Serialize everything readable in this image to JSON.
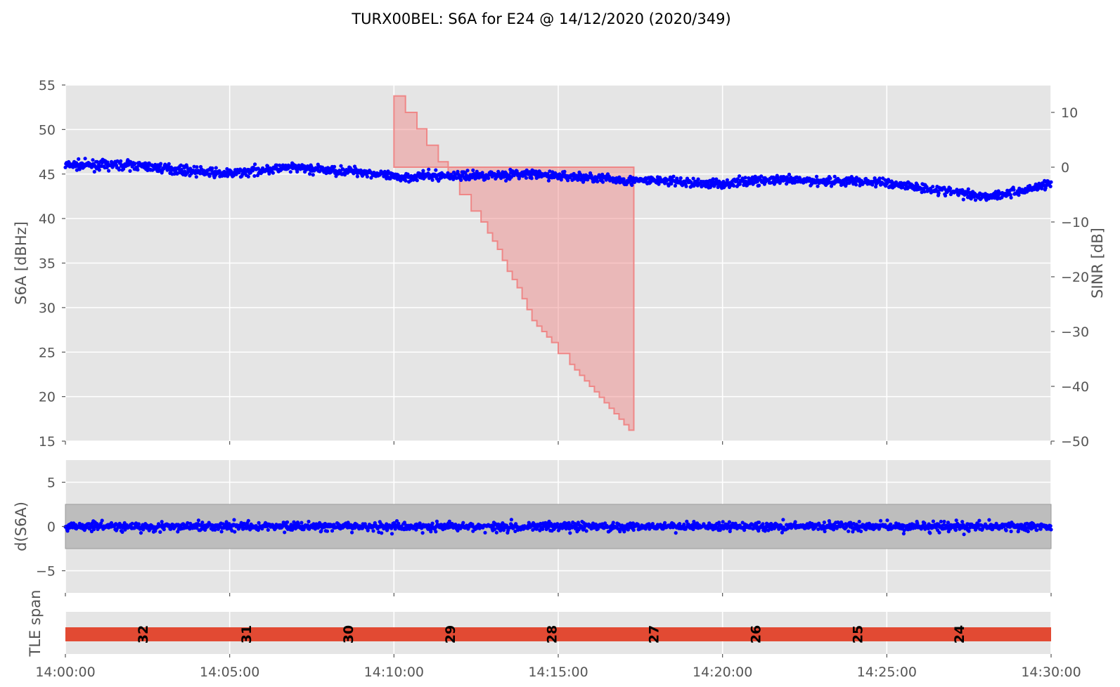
{
  "title": "TURX00BEL: S6A for E24 @ 14/12/2020 (2020/349)",
  "chart_data": [
    {
      "id": "s6a",
      "type": "scatter",
      "ylabel": "S6A [dBHz]",
      "ylabel_right": "SINR [dB]",
      "ylim": [
        15,
        55
      ],
      "ylim_right": [
        -50,
        15
      ],
      "yticks": [
        "15",
        "20",
        "25",
        "30",
        "35",
        "40",
        "45",
        "50",
        "55"
      ],
      "yticks_right": [
        "−50",
        "−40",
        "−30",
        "−20",
        "−10",
        "0",
        "10"
      ],
      "grid": true,
      "series": [
        {
          "color": "#0000ff",
          "axis": "left",
          "x_min": [
            0,
            2,
            4,
            5,
            6,
            7,
            8,
            9,
            9.5,
            10,
            11,
            12,
            13,
            14,
            15,
            16,
            17,
            17.5,
            18,
            19,
            20,
            21,
            22,
            23,
            24,
            25,
            26,
            27,
            28,
            29,
            30
          ],
          "y": [
            46.0,
            46.0,
            45.3,
            45.0,
            45.5,
            45.7,
            45.4,
            45.3,
            45.0,
            44.6,
            44.8,
            44.8,
            44.9,
            45.0,
            44.8,
            44.6,
            44.3,
            44.2,
            44.3,
            44.0,
            43.9,
            44.3,
            44.3,
            44.2,
            44.2,
            44.0,
            43.5,
            43.0,
            42.5,
            43.0,
            44.0
          ],
          "noise": 0.5
        },
        {
          "color": "#f08080",
          "axis": "right",
          "kind": "step-fill",
          "x_min": [
            10.0,
            10.35,
            10.7,
            11.0,
            11.35,
            11.65,
            12.0,
            12.35,
            12.65,
            12.85,
            13.0,
            13.15,
            13.3,
            13.45,
            13.6,
            13.75,
            13.9,
            14.05,
            14.2,
            14.35,
            14.5,
            14.65,
            14.8,
            15.0,
            15.2,
            15.35,
            15.5,
            15.65,
            15.8,
            15.95,
            16.1,
            16.25,
            16.4,
            16.55,
            16.7,
            16.85,
            17.0,
            17.15
          ],
          "y": [
            13,
            10,
            7,
            4,
            1,
            -1,
            -5,
            -8,
            -10,
            -12,
            -13.5,
            -15,
            -17,
            -19,
            -20.5,
            -22,
            -24,
            -26,
            -28,
            -29,
            -30,
            -31,
            -32,
            -34,
            -34,
            -36,
            -37,
            -38,
            -39,
            -40,
            -41,
            -42,
            -43,
            -44,
            -45,
            -46,
            -47,
            -48
          ]
        }
      ]
    },
    {
      "id": "ds6a",
      "type": "scatter",
      "ylabel": "d(S6A)",
      "ylim": [
        -7.5,
        7.5
      ],
      "yticks": [
        "−5",
        "0",
        "5"
      ],
      "band": [
        -2.5,
        2.5
      ],
      "band_color": "#bdbdbd",
      "grid": true,
      "series": [
        {
          "color": "#0000ff",
          "center": 0,
          "noise": 0.6
        }
      ]
    },
    {
      "id": "tle",
      "type": "bar",
      "ylabel": "TLE span",
      "bar_color": "#e24a33",
      "x_range_min": [
        0,
        30
      ],
      "labels": [
        "32",
        "31",
        "30",
        "29",
        "28",
        "27",
        "26",
        "25",
        "24"
      ],
      "label_x_min": [
        2.35,
        5.5,
        8.6,
        11.7,
        14.8,
        17.9,
        21.0,
        24.1,
        27.2
      ]
    }
  ],
  "x_axis": {
    "xlim_min": [
      0,
      30
    ],
    "ticks_min": [
      0,
      5,
      10,
      15,
      20,
      25,
      30
    ],
    "tick_labels": [
      "14:00:00",
      "14:05:00",
      "14:10:00",
      "14:15:00",
      "14:20:00",
      "14:25:00",
      "14:30:00"
    ]
  },
  "colors": {
    "panel_bg": "#e5e5e5",
    "grid": "#ffffff",
    "text": "#555555"
  }
}
